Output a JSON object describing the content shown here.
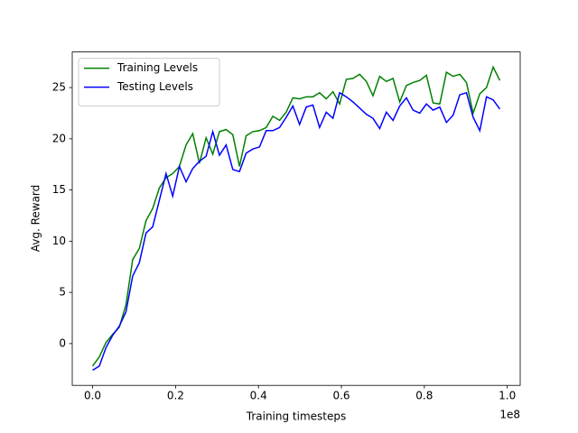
{
  "chart_data": {
    "type": "line",
    "x_label": "Training timesteps",
    "y_label": "Avg. Reward",
    "x_offset_label": "1e8",
    "x": [
      0,
      0.0161,
      0.0322,
      0.0483,
      0.0644,
      0.0805,
      0.0966,
      0.1127,
      0.1288,
      0.1449,
      0.161,
      0.1771,
      0.1932,
      0.2093,
      0.2254,
      0.2415,
      0.2576,
      0.2737,
      0.2898,
      0.3059,
      0.322,
      0.3381,
      0.3542,
      0.3703,
      0.3864,
      0.4025,
      0.4186,
      0.4347,
      0.4508,
      0.4669,
      0.483,
      0.4991,
      0.5152,
      0.5313,
      0.5474,
      0.5635,
      0.5796,
      0.5957,
      0.6118,
      0.6279,
      0.644,
      0.6601,
      0.6762,
      0.6923,
      0.7084,
      0.7245,
      0.7406,
      0.7567,
      0.7728,
      0.7889,
      0.805,
      0.8211,
      0.8372,
      0.8533,
      0.8694,
      0.8855,
      0.9016,
      0.9177,
      0.9338,
      0.9499,
      0.966,
      0.9821
    ],
    "series": [
      {
        "name": "Training Levels",
        "color": "#008000",
        "values": [
          -2.2,
          -1.3,
          0.1,
          0.9,
          1.6,
          3.8,
          8.2,
          9.3,
          12.0,
          13.2,
          15.2,
          16.2,
          16.6,
          17.3,
          19.4,
          20.5,
          17.6,
          20.1,
          18.5,
          20.7,
          20.9,
          20.4,
          17.3,
          20.3,
          20.7,
          20.8,
          21.1,
          22.2,
          21.8,
          22.6,
          24.0,
          23.9,
          24.1,
          24.1,
          24.5,
          23.9,
          24.6,
          23.4,
          25.8,
          25.9,
          26.3,
          25.6,
          24.2,
          26.1,
          25.6,
          25.9,
          23.6,
          25.2,
          25.5,
          25.7,
          26.2,
          23.5,
          23.4,
          26.5,
          26.1,
          26.3,
          25.5,
          22.5,
          24.4,
          25.0,
          27.0,
          25.7
        ]
      },
      {
        "name": "Testing Levels",
        "color": "#0000ff",
        "values": [
          -2.6,
          -2.2,
          -0.4,
          0.8,
          1.7,
          3.1,
          6.6,
          7.9,
          10.8,
          11.4,
          14.0,
          16.6,
          14.4,
          17.3,
          15.8,
          17.1,
          17.8,
          18.3,
          20.7,
          18.4,
          19.4,
          17.0,
          16.8,
          18.6,
          19.0,
          19.2,
          20.8,
          20.8,
          21.1,
          22.1,
          23.2,
          21.4,
          23.1,
          23.3,
          21.1,
          22.6,
          22.0,
          24.5,
          24.1,
          23.6,
          23.0,
          22.4,
          22.0,
          21.0,
          22.6,
          21.8,
          23.2,
          24.0,
          22.8,
          22.5,
          23.4,
          22.8,
          23.1,
          21.6,
          22.3,
          24.3,
          24.5,
          22.1,
          20.8,
          24.1,
          23.8,
          22.9
        ]
      }
    ],
    "xlim": [
      -0.0491,
      1.0312
    ],
    "ylim": [
      -4.08,
      28.48
    ],
    "xticks": [
      {
        "value": 0,
        "label": "0.0"
      },
      0.2,
      0.4,
      0.6,
      0.8,
      {
        "value": 1,
        "label": "1.0"
      }
    ],
    "yticks": [
      0,
      5,
      10,
      15,
      20,
      25
    ],
    "legend": "upper left"
  }
}
